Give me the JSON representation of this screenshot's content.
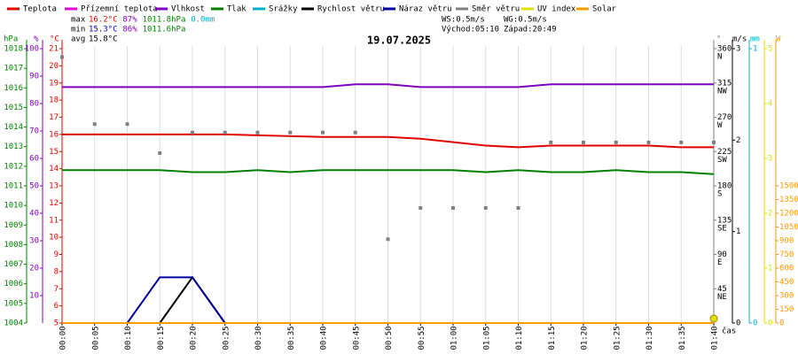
{
  "chart_data": {
    "type": "line",
    "title": "19.07.2025",
    "x_label": "čas",
    "x": [
      0,
      5,
      10,
      15,
      20,
      25,
      30,
      35,
      40,
      45,
      50,
      55,
      60,
      65,
      70,
      75,
      80,
      85,
      90,
      95,
      100
    ],
    "xlim": [
      0,
      100
    ],
    "xticks": [
      {
        "value": 0,
        "label": "00:00"
      },
      {
        "value": 5,
        "label": "00:05"
      },
      {
        "value": 10,
        "label": "00:10"
      },
      {
        "value": 15,
        "label": "00:15"
      },
      {
        "value": 20,
        "label": "00:20"
      },
      {
        "value": 25,
        "label": "00:25"
      },
      {
        "value": 30,
        "label": "00:30"
      },
      {
        "value": 35,
        "label": "00:35"
      },
      {
        "value": 40,
        "label": "00:40"
      },
      {
        "value": 45,
        "label": "00:45"
      },
      {
        "value": 50,
        "label": "00:50"
      },
      {
        "value": 55,
        "label": "00:55"
      },
      {
        "value": 60,
        "label": "01:00"
      },
      {
        "value": 65,
        "label": "01:05"
      },
      {
        "value": 70,
        "label": "01:10"
      },
      {
        "value": 75,
        "label": "01:15"
      },
      {
        "value": 80,
        "label": "01:20"
      },
      {
        "value": 85,
        "label": "01:25"
      },
      {
        "value": 90,
        "label": "01:30"
      },
      {
        "value": 95,
        "label": "01:35"
      },
      {
        "value": 100,
        "label": "01:40"
      }
    ],
    "grid": true,
    "axes": {
      "hpa": {
        "label": "hPa",
        "color": "#008000",
        "side": "left",
        "lim": [
          1004,
          1018
        ],
        "ticks": [
          1004,
          1005,
          1006,
          1007,
          1008,
          1009,
          1010,
          1011,
          1012,
          1013,
          1014,
          1015,
          1016,
          1017,
          1018
        ]
      },
      "pct": {
        "label": "%",
        "color": "#8000c0",
        "side": "left",
        "lim": [
          0,
          100
        ],
        "ticks": [
          10,
          20,
          30,
          40,
          50,
          60,
          70,
          80,
          90,
          100
        ]
      },
      "temp": {
        "label": "°C",
        "color": "#e00000",
        "side": "left",
        "lim": [
          5,
          21
        ],
        "ticks": [
          5,
          6,
          7,
          8,
          9,
          10,
          11,
          12,
          13,
          14,
          15,
          16,
          17,
          18,
          19,
          20,
          21
        ]
      },
      "dir": {
        "label": "°",
        "color": "#808080",
        "side": "right",
        "lim": [
          0,
          360
        ],
        "ticks": [
          45,
          90,
          135,
          180,
          225,
          270,
          315,
          360
        ],
        "compass": [
          "NE",
          "E",
          "SE",
          "S",
          "SW",
          "W",
          "NW",
          "N"
        ]
      },
      "wind": {
        "label": "m/s",
        "color": "#000000",
        "side": "right",
        "lim": [
          0,
          3
        ],
        "ticks": [
          0,
          1,
          2,
          3
        ]
      },
      "rain": {
        "label": "mm",
        "color": "#00b0d0",
        "side": "right",
        "lim": [
          0,
          1
        ],
        "ticks": [
          0,
          1
        ]
      },
      "uv": {
        "label": "",
        "color": "#e0e000",
        "side": "right",
        "lim": [
          0,
          5
        ],
        "ticks": [
          0,
          1,
          2,
          3,
          4,
          5
        ]
      },
      "solar": {
        "label": "W",
        "color": "#ff9900",
        "side": "right",
        "lim": [
          0,
          3000
        ],
        "ticks": [
          0,
          150,
          300,
          450,
          600,
          750,
          900,
          1050,
          1200,
          1350,
          1500
        ]
      }
    },
    "series": [
      {
        "name": "Teplota",
        "color": "#e00000",
        "axis": "temp",
        "values": [
          16.0,
          16.0,
          16.0,
          16.0,
          16.0,
          16.0,
          15.95,
          15.9,
          15.85,
          15.85,
          15.85,
          15.75,
          15.55,
          15.35,
          15.25,
          15.35,
          15.35,
          15.35,
          15.35,
          15.25,
          15.25
        ]
      },
      {
        "name": "Přízemní teplota",
        "color": "#e000e0",
        "axis": "temp",
        "values": [
          null,
          null,
          null,
          null,
          null,
          null,
          null,
          null,
          null,
          null,
          null,
          null,
          null,
          null,
          null,
          null,
          null,
          null,
          null,
          null,
          null
        ]
      },
      {
        "name": "Vlhkost",
        "color": "#8000c0",
        "axis": "pct",
        "values": [
          86,
          86,
          86,
          86,
          86,
          86,
          86,
          86,
          86,
          87,
          87,
          86,
          86,
          86,
          86,
          87,
          87,
          87,
          87,
          87,
          87
        ]
      },
      {
        "name": "Tlak",
        "color": "#008000",
        "axis": "hpa",
        "values": [
          1011.8,
          1011.8,
          1011.8,
          1011.8,
          1011.7,
          1011.7,
          1011.8,
          1011.7,
          1011.8,
          1011.8,
          1011.8,
          1011.8,
          1011.8,
          1011.7,
          1011.8,
          1011.7,
          1011.7,
          1011.8,
          1011.7,
          1011.7,
          1011.6
        ]
      },
      {
        "name": "Srážky",
        "color": "#00b0d0",
        "axis": "rain",
        "values": [
          0,
          0,
          0,
          0,
          0,
          0,
          0,
          0,
          0,
          0,
          0,
          0,
          0,
          0,
          0,
          0,
          0,
          0,
          0,
          0,
          0
        ]
      },
      {
        "name": "Rychlost větru",
        "color": "#000000",
        "axis": "wind",
        "values": [
          0,
          0,
          0,
          0,
          0.5,
          0,
          0,
          0,
          0,
          0,
          0,
          0,
          0,
          0,
          0,
          0,
          0,
          0,
          0,
          0,
          0
        ]
      },
      {
        "name": "Náraz větru",
        "color": "#0000a0",
        "axis": "wind",
        "values": [
          0,
          0,
          0,
          0.5,
          0.5,
          0,
          0,
          0,
          0,
          0,
          0,
          0,
          0,
          0,
          0,
          0,
          0,
          0,
          0,
          0,
          0
        ]
      },
      {
        "name": "Směr větru",
        "color": "#808080",
        "axis": "dir",
        "style": "points",
        "values": [
          349,
          261,
          261,
          223,
          250,
          250,
          250,
          250,
          250,
          250,
          110,
          151,
          151,
          151,
          151,
          237,
          237,
          237,
          237,
          237,
          237
        ]
      },
      {
        "name": "UV index",
        "color": "#e0e000",
        "axis": "uv",
        "end_marker": true,
        "values": [
          0,
          0,
          0,
          0,
          0,
          0,
          0,
          0,
          0,
          0,
          0,
          0,
          0,
          0,
          0,
          0,
          0,
          0,
          0,
          0,
          0
        ]
      },
      {
        "name": "Solar",
        "color": "#ff9900",
        "axis": "solar",
        "values": [
          0,
          0,
          0,
          0,
          0,
          0,
          0,
          0,
          0,
          0,
          0,
          0,
          0,
          0,
          0,
          0,
          0,
          0,
          0,
          0,
          0
        ]
      }
    ],
    "stats": [
      {
        "label": "max",
        "items": [
          {
            "text": "16.2°C",
            "color": "#e00000"
          },
          {
            "text": "87%",
            "color": "#8000c0"
          },
          {
            "text": "1011.8hPa",
            "color": "#008000"
          },
          {
            "text": "0.0mm",
            "color": "#00b0d0"
          }
        ]
      },
      {
        "label": "min",
        "items": [
          {
            "text": "15.3°C",
            "color": "#0000c0"
          },
          {
            "text": "86%",
            "color": "#8000c0"
          },
          {
            "text": "1011.6hPa",
            "color": "#008000"
          }
        ]
      },
      {
        "label": "avg",
        "items": [
          {
            "text": "15.8°C",
            "color": "#000000"
          }
        ]
      }
    ],
    "wind_info": [
      "WS:0.5m/s",
      "WG:0.5m/s"
    ],
    "sun_info": [
      "Východ:05:10",
      "Západ:20:49"
    ]
  }
}
